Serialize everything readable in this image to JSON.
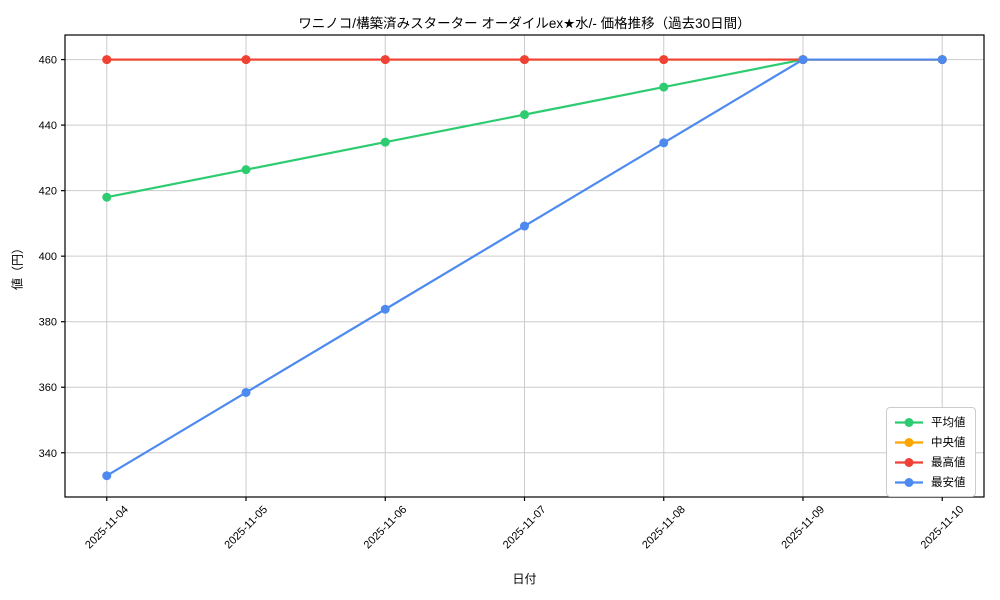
{
  "chart_data": {
    "type": "line",
    "title": "ワニノコ/構築済みスターター オーダイルex★水/- 価格推移（過去30日間）",
    "xlabel": "日付",
    "ylabel": "値（円）",
    "categories": [
      "2025-11-04",
      "2025-11-05",
      "2025-11-06",
      "2025-11-07",
      "2025-11-08",
      "2025-11-09",
      "2025-11-10"
    ],
    "series": [
      {
        "name": "平均値",
        "color": "#2ecc71",
        "values": [
          418.0,
          426.4,
          434.8,
          443.2,
          451.6,
          460,
          460
        ]
      },
      {
        "name": "中央値",
        "color": "#ffa500",
        "values": [
          460,
          460,
          460,
          460,
          460,
          460,
          460
        ]
      },
      {
        "name": "最高値",
        "color": "#ef4135",
        "values": [
          460,
          460,
          460,
          460,
          460,
          460,
          460
        ]
      },
      {
        "name": "最安値",
        "color": "#4d8af0",
        "values": [
          333.0,
          358.4,
          383.8,
          409.2,
          434.6,
          460,
          460
        ]
      }
    ],
    "yticks": [
      340,
      360,
      380,
      400,
      420,
      440,
      460
    ],
    "ylim": [
      326.5,
      467.5
    ],
    "grid": true,
    "grid_color": "#cccccc",
    "spine_color": "#000000",
    "legend_position": "lower right"
  }
}
